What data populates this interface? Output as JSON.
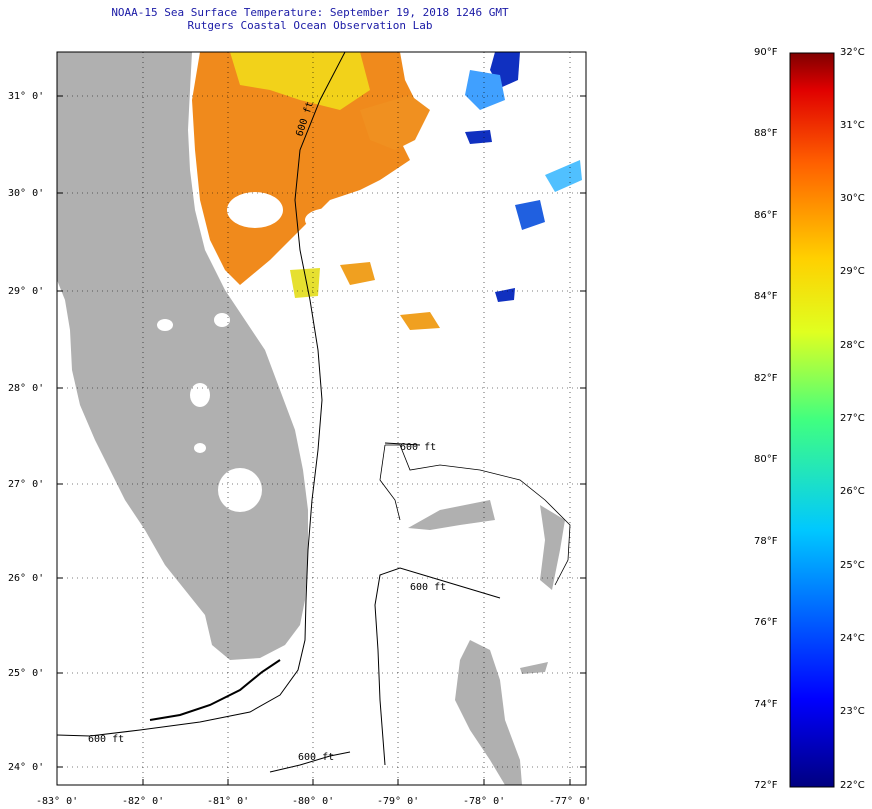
{
  "title": {
    "line1": "NOAA-15 Sea Surface Temperature:  September 19, 2018 1246 GMT",
    "line2": "Rutgers Coastal Ocean Observation Lab"
  },
  "axes": {
    "lat_labels": [
      "31° 0'",
      "30° 0'",
      "29° 0'",
      "28° 0'",
      "27° 0'",
      "26° 0'",
      "25° 0'",
      "24° 0'"
    ],
    "lon_labels": [
      "-83° 0'",
      "-82° 0'",
      "-81° 0'",
      "-80° 0'",
      "-79° 0'",
      "-78° 0'",
      "-77° 0'"
    ]
  },
  "contour_labels": [
    "600 ft",
    "600 ft",
    "600 ft",
    "600 ft",
    "600 ft"
  ],
  "colorbar": {
    "fahrenheit": [
      "90°F",
      "88°F",
      "86°F",
      "84°F",
      "82°F",
      "80°F",
      "78°F",
      "76°F",
      "74°F",
      "72°F"
    ],
    "celsius": [
      "32°C",
      "31°C",
      "30°C",
      "29°C",
      "28°C",
      "27°C",
      "26°C",
      "25°C",
      "24°C",
      "23°C",
      "22°C"
    ]
  },
  "colors": {
    "land": "#b0b0b0",
    "ocean": "#ffffff",
    "sst_warm": "#f08a1c",
    "sst_yellow": "#f2d21a",
    "sst_cool": "#1030c0"
  }
}
